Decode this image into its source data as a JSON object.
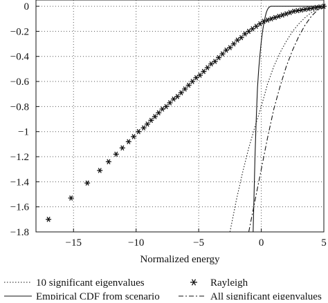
{
  "chart_data": {
    "type": "line",
    "title": "",
    "xlabel": "Normalized energy",
    "ylabel": "",
    "xlim": [
      -18,
      5
    ],
    "ylim": [
      -1.8,
      0.05
    ],
    "x_ticks": [
      -15,
      -10,
      -5,
      0,
      5
    ],
    "x_tick_labels": [
      "−15",
      "−10",
      "−5",
      "0",
      "5"
    ],
    "y_ticks": [
      0,
      -0.2,
      -0.4,
      -0.6,
      -0.8,
      -1.0,
      -1.2,
      -1.4,
      -1.6,
      -1.8
    ],
    "y_tick_labels": [
      "0",
      "−0.2",
      "−0.4",
      "−0.6",
      "−0.8",
      "−1",
      "−1.2",
      "−1.4",
      "−1.6",
      "−1.8"
    ],
    "grid": true,
    "legend_placement": "bottom",
    "series": [
      {
        "name": "10 significant eigenvalues",
        "style": "dotted",
        "points": [
          [
            -2.5,
            -1.8
          ],
          [
            -2.2,
            -1.65
          ],
          [
            -2,
            -1.55
          ],
          [
            -1.5,
            -1.33
          ],
          [
            -1,
            -1.13
          ],
          [
            -0.5,
            -0.96
          ],
          [
            0,
            -0.8
          ],
          [
            0.5,
            -0.62
          ],
          [
            1,
            -0.48
          ],
          [
            1.5,
            -0.37
          ],
          [
            2,
            -0.28
          ],
          [
            2.5,
            -0.2
          ],
          [
            3,
            -0.14
          ],
          [
            3.5,
            -0.09
          ],
          [
            4,
            -0.05
          ],
          [
            4.5,
            -0.025
          ],
          [
            5,
            -0.01
          ]
        ]
      },
      {
        "name": "Empirical CDF from scenario",
        "style": "solid",
        "points": [
          [
            -0.65,
            -1.8
          ],
          [
            -0.6,
            -1.6
          ],
          [
            -0.5,
            -1.2
          ],
          [
            -0.4,
            -0.9
          ],
          [
            -0.3,
            -0.65
          ],
          [
            -0.2,
            -0.5
          ],
          [
            -0.1,
            -0.38
          ],
          [
            0,
            -0.28
          ],
          [
            0.1,
            -0.2
          ],
          [
            0.2,
            -0.14
          ],
          [
            0.3,
            -0.09
          ],
          [
            0.4,
            -0.05
          ],
          [
            0.5,
            -0.025
          ],
          [
            0.6,
            -0.01
          ],
          [
            0.75,
            0
          ],
          [
            5,
            0
          ]
        ]
      },
      {
        "name": "Rayleigh",
        "style": "asterisk",
        "points": [
          [
            -17,
            -1.7
          ],
          [
            -15.2,
            -1.53
          ],
          [
            -13.9,
            -1.41
          ],
          [
            -12.9,
            -1.31
          ],
          [
            -12.2,
            -1.24
          ],
          [
            -11.6,
            -1.18
          ],
          [
            -11.1,
            -1.13
          ],
          [
            -10.6,
            -1.08
          ],
          [
            -10.2,
            -1.04
          ],
          [
            -9.8,
            -1.0
          ],
          [
            -9.4,
            -0.97
          ],
          [
            -9.1,
            -0.94
          ],
          [
            -8.8,
            -0.91
          ],
          [
            -8.5,
            -0.88
          ],
          [
            -8.2,
            -0.85
          ],
          [
            -7.9,
            -0.82
          ],
          [
            -7.6,
            -0.8
          ],
          [
            -7.3,
            -0.77
          ],
          [
            -7.0,
            -0.74
          ],
          [
            -6.7,
            -0.72
          ],
          [
            -6.4,
            -0.69
          ],
          [
            -6.1,
            -0.66
          ],
          [
            -5.8,
            -0.63
          ],
          [
            -5.5,
            -0.6
          ],
          [
            -5.2,
            -0.57
          ],
          [
            -4.9,
            -0.55
          ],
          [
            -4.6,
            -0.52
          ],
          [
            -4.3,
            -0.49
          ],
          [
            -4.0,
            -0.46
          ],
          [
            -3.7,
            -0.44
          ],
          [
            -3.4,
            -0.41
          ],
          [
            -3.1,
            -0.38
          ],
          [
            -2.8,
            -0.35
          ],
          [
            -2.5,
            -0.33
          ],
          [
            -2.2,
            -0.3
          ],
          [
            -1.9,
            -0.27
          ],
          [
            -1.6,
            -0.25
          ],
          [
            -1.3,
            -0.22
          ],
          [
            -1.0,
            -0.2
          ],
          [
            -0.7,
            -0.18
          ],
          [
            -0.4,
            -0.16
          ],
          [
            -0.1,
            -0.14
          ],
          [
            0.2,
            -0.12
          ],
          [
            0.5,
            -0.11
          ],
          [
            0.8,
            -0.1
          ],
          [
            1.1,
            -0.09
          ],
          [
            1.4,
            -0.08
          ],
          [
            1.7,
            -0.07
          ],
          [
            2.0,
            -0.06
          ],
          [
            2.3,
            -0.05
          ],
          [
            2.6,
            -0.04
          ],
          [
            2.9,
            -0.035
          ],
          [
            3.2,
            -0.03
          ],
          [
            3.5,
            -0.025
          ],
          [
            3.8,
            -0.02
          ],
          [
            4.1,
            -0.015
          ],
          [
            4.4,
            -0.01
          ],
          [
            4.7,
            -0.005
          ],
          [
            5.0,
            0
          ]
        ]
      },
      {
        "name": "All significant eigenvalues",
        "style": "dashdot",
        "points": [
          [
            -1.0,
            -1.8
          ],
          [
            -0.8,
            -1.7
          ],
          [
            -0.5,
            -1.55
          ],
          [
            0,
            -1.3
          ],
          [
            0.5,
            -1.05
          ],
          [
            1,
            -0.82
          ],
          [
            1.5,
            -0.64
          ],
          [
            2,
            -0.48
          ],
          [
            2.5,
            -0.35
          ],
          [
            3,
            -0.24
          ],
          [
            3.5,
            -0.15
          ],
          [
            4,
            -0.08
          ],
          [
            4.5,
            -0.03
          ],
          [
            5,
            -0.01
          ]
        ]
      }
    ]
  }
}
